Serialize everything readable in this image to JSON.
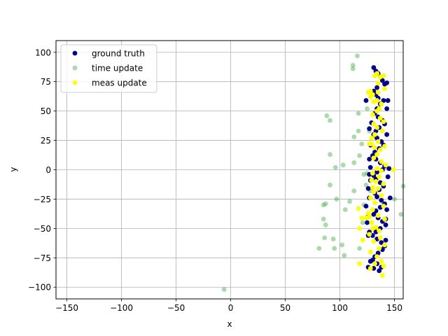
{
  "chart_data": {
    "type": "scatter",
    "title": "",
    "xlabel": "x",
    "ylabel": "y",
    "xlim": [
      -160,
      158
    ],
    "ylim": [
      -110,
      110
    ],
    "xticks": [
      -150,
      -100,
      -50,
      0,
      50,
      100,
      150
    ],
    "yticks": [
      -100,
      -75,
      -50,
      -25,
      0,
      25,
      50,
      75,
      100
    ],
    "xtick_labels": [
      "−150",
      "−100",
      "−50",
      "0",
      "50",
      "100",
      "150"
    ],
    "ytick_labels": [
      "−100",
      "−75",
      "−50",
      "−25",
      "0",
      "25",
      "50",
      "75",
      "100"
    ],
    "grid": true,
    "legend_position": "upper-left",
    "series": [
      {
        "name": "ground truth",
        "color": "#00008b",
        "alpha": 1.0,
        "points": [
          [
            131,
            87
          ],
          [
            133,
            84
          ],
          [
            135,
            82
          ],
          [
            137,
            79
          ],
          [
            139,
            76
          ],
          [
            141,
            73
          ],
          [
            134,
            70
          ],
          [
            131,
            67
          ],
          [
            133,
            64
          ],
          [
            135,
            61
          ],
          [
            140,
            59
          ],
          [
            144,
            59
          ],
          [
            137,
            56
          ],
          [
            134,
            52
          ],
          [
            132,
            48
          ],
          [
            135,
            45
          ],
          [
            139,
            42
          ],
          [
            141,
            39
          ],
          [
            136,
            36
          ],
          [
            133,
            33
          ],
          [
            131,
            30
          ],
          [
            134,
            27
          ],
          [
            138,
            24
          ],
          [
            140,
            21
          ],
          [
            136,
            18
          ],
          [
            132,
            15
          ],
          [
            130,
            12
          ],
          [
            133,
            9
          ],
          [
            137,
            6
          ],
          [
            141,
            3
          ],
          [
            139,
            0
          ],
          [
            134,
            -2
          ],
          [
            131,
            -5
          ],
          [
            133,
            -8
          ],
          [
            137,
            -11
          ],
          [
            140,
            -14
          ],
          [
            136,
            -17
          ],
          [
            132,
            -20
          ],
          [
            134,
            -23
          ],
          [
            138,
            -26
          ],
          [
            141,
            -29
          ],
          [
            137,
            -32
          ],
          [
            133,
            -35
          ],
          [
            131,
            -38
          ],
          [
            135,
            -41
          ],
          [
            139,
            -44
          ],
          [
            142,
            -47
          ],
          [
            137,
            -50
          ],
          [
            133,
            -53
          ],
          [
            130,
            -56
          ],
          [
            134,
            -59
          ],
          [
            138,
            -62
          ],
          [
            141,
            -65
          ],
          [
            139,
            -68
          ],
          [
            135,
            -71
          ],
          [
            132,
            -74
          ],
          [
            130,
            -77
          ],
          [
            134,
            -80
          ],
          [
            138,
            -83
          ],
          [
            136,
            -86
          ],
          [
            131,
            -84
          ],
          [
            126,
            -83
          ],
          [
            128,
            -78
          ],
          [
            126,
            -56
          ],
          [
            127,
            -53
          ],
          [
            125,
            -45
          ],
          [
            126,
            -40
          ],
          [
            124,
            -31
          ],
          [
            127,
            -24
          ],
          [
            126,
            -16
          ],
          [
            128,
            -9
          ],
          [
            127,
            -4
          ],
          [
            128,
            2
          ],
          [
            127,
            9
          ],
          [
            128,
            21
          ],
          [
            127,
            35
          ],
          [
            129,
            40
          ],
          [
            124,
            59
          ],
          [
            143,
            74
          ],
          [
            146,
            -24
          ],
          [
            144,
            -6
          ],
          [
            145,
            1
          ],
          [
            143,
            30
          ],
          [
            143,
            52
          ],
          [
            142,
            -42
          ],
          [
            143,
            -34
          ],
          [
            142,
            -60
          ]
        ]
      },
      {
        "name": "time update",
        "color": "#2ca02c",
        "alpha": 0.4,
        "points": [
          [
            -6,
            -102
          ],
          [
            116,
            97
          ],
          [
            112,
            89
          ],
          [
            112,
            86
          ],
          [
            88,
            46
          ],
          [
            91,
            42
          ],
          [
            117,
            48
          ],
          [
            125,
            52
          ],
          [
            117,
            33
          ],
          [
            113,
            28
          ],
          [
            120,
            22
          ],
          [
            91,
            13
          ],
          [
            118,
            12
          ],
          [
            103,
            4
          ],
          [
            113,
            6
          ],
          [
            96,
            2
          ],
          [
            125,
            -3
          ],
          [
            122,
            -4
          ],
          [
            124,
            -13
          ],
          [
            91,
            -13
          ],
          [
            158,
            -14
          ],
          [
            113,
            -18
          ],
          [
            109,
            -27
          ],
          [
            97,
            -25
          ],
          [
            105,
            -34
          ],
          [
            87,
            -29
          ],
          [
            85,
            -30
          ],
          [
            85,
            -42
          ],
          [
            87,
            -47
          ],
          [
            86,
            -58
          ],
          [
            94,
            -59
          ],
          [
            81,
            -67
          ],
          [
            95,
            -67
          ],
          [
            102,
            -64
          ],
          [
            104,
            -73
          ],
          [
            118,
            -67
          ],
          [
            121,
            -45
          ],
          [
            122,
            -30
          ],
          [
            128,
            -18
          ],
          [
            150,
            -25
          ],
          [
            156,
            -38
          ],
          [
            140,
            -29
          ],
          [
            127,
            33
          ],
          [
            133,
            28
          ]
        ]
      },
      {
        "name": "meas update",
        "color": "#ffff00",
        "alpha": 1.0,
        "points": [
          [
            134,
            82
          ],
          [
            132,
            80
          ],
          [
            137,
            79
          ],
          [
            140,
            80
          ],
          [
            141,
            69
          ],
          [
            135,
            66
          ],
          [
            130,
            64
          ],
          [
            128,
            62
          ],
          [
            134,
            59
          ],
          [
            131,
            58
          ],
          [
            138,
            56
          ],
          [
            136,
            52
          ],
          [
            134,
            50
          ],
          [
            130,
            47
          ],
          [
            137,
            44
          ],
          [
            140,
            41
          ],
          [
            131,
            39
          ],
          [
            134,
            36
          ],
          [
            139,
            33
          ],
          [
            132,
            30
          ],
          [
            129,
            27
          ],
          [
            135,
            24
          ],
          [
            129,
            22
          ],
          [
            132,
            19
          ],
          [
            137,
            17
          ],
          [
            141,
            20
          ],
          [
            134,
            13
          ],
          [
            131,
            10
          ],
          [
            138,
            7
          ],
          [
            142,
            4
          ],
          [
            134,
            1
          ],
          [
            138,
            -1
          ],
          [
            130,
            -3
          ],
          [
            136,
            -6
          ],
          [
            129,
            -9
          ],
          [
            140,
            -12
          ],
          [
            135,
            -16
          ],
          [
            131,
            -19
          ],
          [
            138,
            -22
          ],
          [
            128,
            -24
          ],
          [
            132,
            -28
          ],
          [
            140,
            -31
          ],
          [
            130,
            -34
          ],
          [
            126,
            -37
          ],
          [
            135,
            -39
          ],
          [
            141,
            -42
          ],
          [
            129,
            -45
          ],
          [
            133,
            -49
          ],
          [
            136,
            -52
          ],
          [
            127,
            -55
          ],
          [
            137,
            -58
          ],
          [
            131,
            -61
          ],
          [
            141,
            -64
          ],
          [
            136,
            -67
          ],
          [
            128,
            -70
          ],
          [
            134,
            -74
          ],
          [
            138,
            -78
          ],
          [
            132,
            -80
          ],
          [
            140,
            -82
          ],
          [
            139,
            -90
          ],
          [
            128,
            -84
          ],
          [
            118,
            -80
          ],
          [
            121,
            -60
          ],
          [
            118,
            -50
          ],
          [
            120,
            -41
          ],
          [
            117,
            -33
          ],
          [
            124,
            -41
          ],
          [
            127,
            -40
          ],
          [
            149,
            0
          ],
          [
            126,
            66
          ],
          [
            128,
            67
          ],
          [
            135,
            74
          ],
          [
            133,
            -10
          ],
          [
            130,
            -15
          ],
          [
            127,
            22
          ],
          [
            130,
            -50
          ]
        ]
      }
    ]
  }
}
